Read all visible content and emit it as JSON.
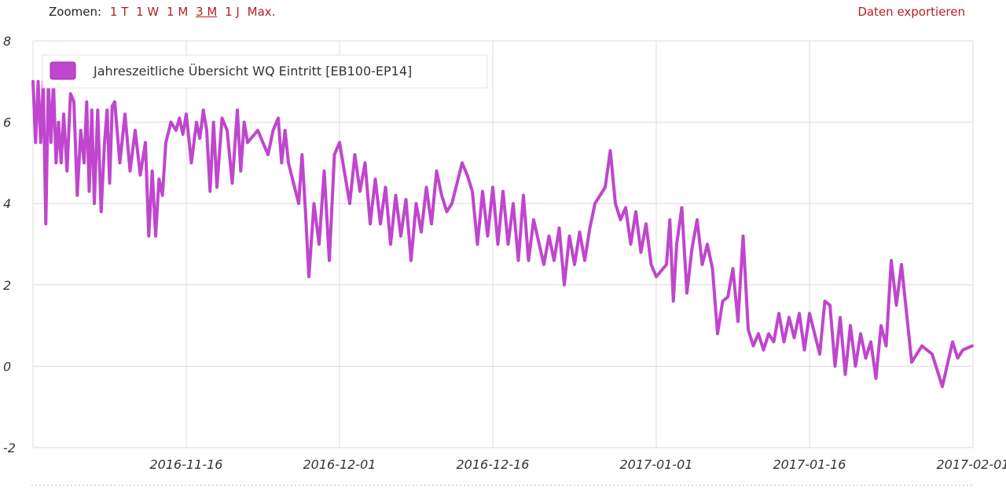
{
  "toolbar": {
    "zoom_label": "Zoomen:",
    "zoom_buttons": [
      "1 T",
      "1 W",
      "1 M",
      "3 M",
      "1 J",
      "Max."
    ],
    "active_zoom": "3 M",
    "export_label": "Daten exportieren"
  },
  "colors": {
    "series": "#bf46cd",
    "grid": "#dcdcdc",
    "link": "#b22222"
  },
  "chart_data": {
    "type": "line",
    "xlim": [
      "2016-11-01",
      "2017-02-01"
    ],
    "ylim": [
      -2,
      8
    ],
    "yticks": [
      "-2",
      "0",
      "2",
      "4",
      "6",
      "8"
    ],
    "xticks": [
      "2016-11-16",
      "2016-12-01",
      "2016-12-16",
      "2017-01-01",
      "2017-01-16",
      "2017-02-01"
    ],
    "grid": true,
    "legend_position": "top-left",
    "series": [
      {
        "name": "Jahreszeitliche Übersicht WQ Eintritt [EB100-EP14]",
        "points": [
          [
            "2016-11-01",
            7.0
          ],
          [
            "2016-11-01",
            5.5
          ],
          [
            "2016-11-01",
            7.0
          ],
          [
            "2016-11-01",
            5.5
          ],
          [
            "2016-11-02",
            7.0
          ],
          [
            "2016-11-02",
            3.5
          ],
          [
            "2016-11-02",
            7.0
          ],
          [
            "2016-11-02",
            5.5
          ],
          [
            "2016-11-03",
            7.0
          ],
          [
            "2016-11-03",
            5.0
          ],
          [
            "2016-11-03",
            6.0
          ],
          [
            "2016-11-03",
            5.0
          ],
          [
            "2016-11-04",
            6.2
          ],
          [
            "2016-11-04",
            4.8
          ],
          [
            "2016-11-04",
            6.7
          ],
          [
            "2016-11-05",
            6.5
          ],
          [
            "2016-11-05",
            4.2
          ],
          [
            "2016-11-05",
            5.8
          ],
          [
            "2016-11-06",
            5.0
          ],
          [
            "2016-11-06",
            6.5
          ],
          [
            "2016-11-06",
            4.3
          ],
          [
            "2016-11-06",
            6.3
          ],
          [
            "2016-11-07",
            4.0
          ],
          [
            "2016-11-07",
            6.3
          ],
          [
            "2016-11-07",
            3.8
          ],
          [
            "2016-11-08",
            5.5
          ],
          [
            "2016-11-08",
            6.3
          ],
          [
            "2016-11-08",
            4.5
          ],
          [
            "2016-11-08",
            6.4
          ],
          [
            "2016-11-09",
            6.5
          ],
          [
            "2016-11-09",
            5.0
          ],
          [
            "2016-11-10",
            6.2
          ],
          [
            "2016-11-10",
            4.8
          ],
          [
            "2016-11-11",
            5.8
          ],
          [
            "2016-11-11",
            4.7
          ],
          [
            "2016-11-12",
            5.5
          ],
          [
            "2016-11-12",
            3.2
          ],
          [
            "2016-11-12",
            4.8
          ],
          [
            "2016-11-13",
            3.2
          ],
          [
            "2016-11-13",
            4.6
          ],
          [
            "2016-11-13",
            4.2
          ],
          [
            "2016-11-14",
            5.5
          ],
          [
            "2016-11-14",
            6.0
          ],
          [
            "2016-11-15",
            5.8
          ],
          [
            "2016-11-15",
            6.1
          ],
          [
            "2016-11-15",
            5.7
          ],
          [
            "2016-11-16",
            6.2
          ],
          [
            "2016-11-16",
            5.0
          ],
          [
            "2016-11-17",
            6.0
          ],
          [
            "2016-11-17",
            5.6
          ],
          [
            "2016-11-17",
            6.3
          ],
          [
            "2016-11-18",
            5.8
          ],
          [
            "2016-11-18",
            4.3
          ],
          [
            "2016-11-18",
            6.0
          ],
          [
            "2016-11-19",
            4.4
          ],
          [
            "2016-11-19",
            6.1
          ],
          [
            "2016-11-20",
            5.8
          ],
          [
            "2016-11-20",
            4.5
          ],
          [
            "2016-11-21",
            6.3
          ],
          [
            "2016-11-21",
            4.8
          ],
          [
            "2016-11-21",
            6.0
          ],
          [
            "2016-11-22",
            5.5
          ],
          [
            "2016-11-23",
            5.8
          ],
          [
            "2016-11-24",
            5.2
          ],
          [
            "2016-11-24",
            5.8
          ],
          [
            "2016-11-25",
            6.1
          ],
          [
            "2016-11-25",
            5.0
          ],
          [
            "2016-11-25",
            5.8
          ],
          [
            "2016-11-26",
            5.0
          ],
          [
            "2016-11-27",
            4.0
          ],
          [
            "2016-11-27",
            5.2
          ],
          [
            "2016-11-27",
            3.8
          ],
          [
            "2016-11-28",
            2.2
          ],
          [
            "2016-11-28",
            4.0
          ],
          [
            "2016-11-29",
            3.0
          ],
          [
            "2016-11-29",
            4.8
          ],
          [
            "2016-11-30",
            2.6
          ],
          [
            "2016-11-30",
            5.2
          ],
          [
            "2016-12-01",
            5.5
          ],
          [
            "2016-12-02",
            4.0
          ],
          [
            "2016-12-02",
            5.2
          ],
          [
            "2016-12-03",
            4.3
          ],
          [
            "2016-12-03",
            5.0
          ],
          [
            "2016-12-04",
            3.5
          ],
          [
            "2016-12-04",
            4.6
          ],
          [
            "2016-12-05",
            3.5
          ],
          [
            "2016-12-05",
            4.4
          ],
          [
            "2016-12-06",
            3.0
          ],
          [
            "2016-12-06",
            4.2
          ],
          [
            "2016-12-07",
            3.2
          ],
          [
            "2016-12-07",
            4.1
          ],
          [
            "2016-12-08",
            2.6
          ],
          [
            "2016-12-08",
            4.0
          ],
          [
            "2016-12-09",
            3.3
          ],
          [
            "2016-12-09",
            4.4
          ],
          [
            "2016-12-10",
            3.5
          ],
          [
            "2016-12-10",
            4.8
          ],
          [
            "2016-12-11",
            4.2
          ],
          [
            "2016-12-11",
            3.8
          ],
          [
            "2016-12-12",
            4.0
          ],
          [
            "2016-12-13",
            5.0
          ],
          [
            "2016-12-13",
            4.7
          ],
          [
            "2016-12-14",
            4.3
          ],
          [
            "2016-12-14",
            3.0
          ],
          [
            "2016-12-15",
            4.3
          ],
          [
            "2016-12-15",
            3.2
          ],
          [
            "2016-12-16",
            4.4
          ],
          [
            "2016-12-16",
            3.0
          ],
          [
            "2016-12-17",
            4.3
          ],
          [
            "2016-12-17",
            3.0
          ],
          [
            "2016-12-18",
            4.0
          ],
          [
            "2016-12-18",
            2.6
          ],
          [
            "2016-12-19",
            4.2
          ],
          [
            "2016-12-19",
            2.6
          ],
          [
            "2016-12-20",
            3.6
          ],
          [
            "2016-12-21",
            2.5
          ],
          [
            "2016-12-21",
            3.2
          ],
          [
            "2016-12-22",
            2.6
          ],
          [
            "2016-12-22",
            3.4
          ],
          [
            "2016-12-23",
            2.0
          ],
          [
            "2016-12-23",
            3.2
          ],
          [
            "2016-12-24",
            2.5
          ],
          [
            "2016-12-24",
            3.3
          ],
          [
            "2016-12-25",
            2.6
          ],
          [
            "2016-12-25",
            3.4
          ],
          [
            "2016-12-26",
            4.0
          ],
          [
            "2016-12-26",
            4.2
          ],
          [
            "2016-12-27",
            4.4
          ],
          [
            "2016-12-27",
            5.3
          ],
          [
            "2016-12-28",
            4.0
          ],
          [
            "2016-12-28",
            3.6
          ],
          [
            "2016-12-29",
            3.9
          ],
          [
            "2016-12-29",
            3.0
          ],
          [
            "2016-12-30",
            3.8
          ],
          [
            "2016-12-30",
            2.8
          ],
          [
            "2016-12-31",
            3.5
          ],
          [
            "2016-12-31",
            2.5
          ],
          [
            "2017-01-01",
            2.2
          ],
          [
            "2017-01-02",
            2.5
          ],
          [
            "2017-01-02",
            3.6
          ],
          [
            "2017-01-02",
            1.6
          ],
          [
            "2017-01-03",
            3.0
          ],
          [
            "2017-01-03",
            3.9
          ],
          [
            "2017-01-04",
            1.8
          ],
          [
            "2017-01-04",
            2.9
          ],
          [
            "2017-01-05",
            3.6
          ],
          [
            "2017-01-05",
            2.5
          ],
          [
            "2017-01-06",
            3.0
          ],
          [
            "2017-01-06",
            2.4
          ],
          [
            "2017-01-07",
            0.8
          ],
          [
            "2017-01-07",
            1.6
          ],
          [
            "2017-01-08",
            1.7
          ],
          [
            "2017-01-08",
            2.4
          ],
          [
            "2017-01-09",
            1.1
          ],
          [
            "2017-01-09",
            3.2
          ],
          [
            "2017-01-10",
            0.9
          ],
          [
            "2017-01-10",
            0.5
          ],
          [
            "2017-01-11",
            0.8
          ],
          [
            "2017-01-11",
            0.4
          ],
          [
            "2017-01-12",
            0.8
          ],
          [
            "2017-01-12",
            0.6
          ],
          [
            "2017-01-13",
            1.3
          ],
          [
            "2017-01-13",
            0.6
          ],
          [
            "2017-01-14",
            1.2
          ],
          [
            "2017-01-14",
            0.7
          ],
          [
            "2017-01-15",
            1.3
          ],
          [
            "2017-01-15",
            0.4
          ],
          [
            "2017-01-16",
            1.3
          ],
          [
            "2017-01-17",
            0.3
          ],
          [
            "2017-01-17",
            1.6
          ],
          [
            "2017-01-18",
            1.5
          ],
          [
            "2017-01-18",
            0.0
          ],
          [
            "2017-01-19",
            1.2
          ],
          [
            "2017-01-19",
            -0.2
          ],
          [
            "2017-01-20",
            1.0
          ],
          [
            "2017-01-20",
            0.0
          ],
          [
            "2017-01-21",
            0.8
          ],
          [
            "2017-01-21",
            0.2
          ],
          [
            "2017-01-22",
            0.6
          ],
          [
            "2017-01-22",
            -0.3
          ],
          [
            "2017-01-23",
            1.0
          ],
          [
            "2017-01-23",
            0.5
          ],
          [
            "2017-01-24",
            2.6
          ],
          [
            "2017-01-24",
            1.5
          ],
          [
            "2017-01-25",
            2.5
          ],
          [
            "2017-01-26",
            0.1
          ],
          [
            "2017-01-27",
            0.5
          ],
          [
            "2017-01-28",
            0.3
          ],
          [
            "2017-01-29",
            -0.5
          ],
          [
            "2017-01-30",
            0.6
          ],
          [
            "2017-01-30",
            0.2
          ],
          [
            "2017-01-31",
            0.4
          ],
          [
            "2017-02-01",
            0.5
          ]
        ]
      }
    ]
  }
}
